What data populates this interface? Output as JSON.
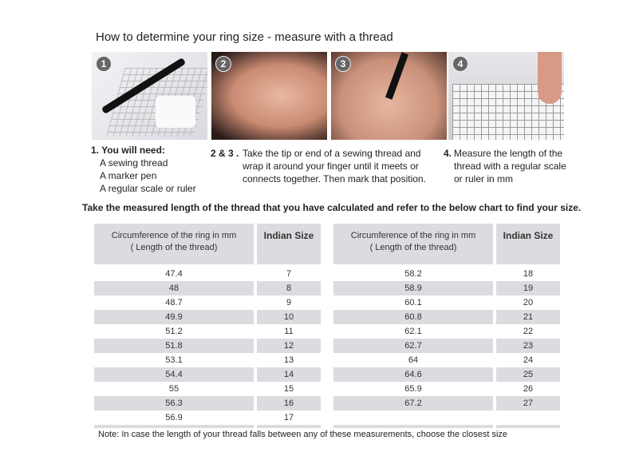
{
  "title": "How to determine your ring size - measure with a thread",
  "photos": [
    {
      "num": "1"
    },
    {
      "num": "2"
    },
    {
      "num": "3"
    },
    {
      "num": "4"
    }
  ],
  "steps": {
    "s1": {
      "heading": "1. You will need:",
      "items": [
        "A sewing thread",
        "A marker pen",
        "A regular scale or ruler"
      ]
    },
    "s23": {
      "heading": "2 & 3 .",
      "lines": [
        "Take the tip or end of a sewing thread and",
        "wrap it around your finger until it meets or",
        "connects together. Then mark that position."
      ]
    },
    "s4": {
      "heading": "4.",
      "lines": [
        "Measure the length of the",
        "thread with a regular scale",
        "or ruler in mm"
      ]
    }
  },
  "instruction": "Take the measured length of the thread that you have calculated and refer to the below chart to find your size.",
  "table": {
    "header_circ_1": "Circumference of the ring in mm",
    "header_circ_2": "( Length of the thread)",
    "header_size": "Indian Size",
    "left": [
      [
        "47.4",
        "7"
      ],
      [
        "48",
        "8"
      ],
      [
        "48.7",
        "9"
      ],
      [
        "49.9",
        "10"
      ],
      [
        "51.2",
        "11"
      ],
      [
        "51.8",
        "12"
      ],
      [
        "53.1",
        "13"
      ],
      [
        "54.4",
        "14"
      ],
      [
        "55",
        "15"
      ],
      [
        "56.3",
        "16"
      ],
      [
        "56.9",
        "17"
      ]
    ],
    "right": [
      [
        "58.2",
        "18"
      ],
      [
        "58.9",
        "19"
      ],
      [
        "60.1",
        "20"
      ],
      [
        "60.8",
        "21"
      ],
      [
        "62.1",
        "22"
      ],
      [
        "62.7",
        "23"
      ],
      [
        "64",
        "24"
      ],
      [
        "64.6",
        "25"
      ],
      [
        "65.9",
        "26"
      ],
      [
        "67.2",
        "27"
      ],
      [
        "",
        ""
      ]
    ]
  },
  "footer": "Note: In case the length of your thread falls between any of these measurements, choose the closest size"
}
